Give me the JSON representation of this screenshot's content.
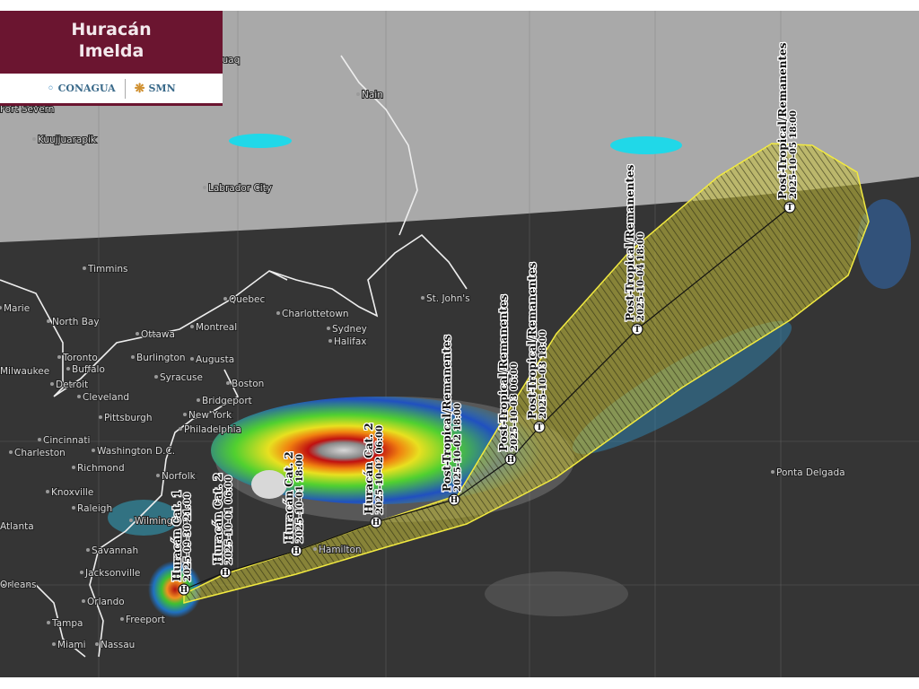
{
  "banner": {
    "title_line1": "Huracán",
    "title_line2": "Imelda",
    "logo_left": "CONAGUA",
    "logo_right": "SMN"
  },
  "colors": {
    "banner": "#6b1530",
    "cone": "#e8e04a",
    "upper_background": "#a8a8a8",
    "satellite_background": "#343434"
  },
  "track": [
    {
      "title": "Huracán Cat. 1",
      "date": "2025-09-30 21:00",
      "marker": "H"
    },
    {
      "title": "Huracán Cat. 2",
      "date": "2025-10-01 06:00",
      "marker": "H"
    },
    {
      "title": "Huracán Cat. 2",
      "date": "2025-10-01 18:00",
      "marker": "H"
    },
    {
      "title": "Huracán Cat. 2",
      "date": "2025-10-02 06:00",
      "marker": "H"
    },
    {
      "title": "Post-Tropical/Remanentes",
      "date": "2025-10-02 18:00",
      "marker": "H"
    },
    {
      "title": "Post-Tropical/Remanentes",
      "date": "2025-10-03 06:00",
      "marker": "H"
    },
    {
      "title": "Post-Tropical/Remanentes",
      "date": "2025-10-03 18:00",
      "marker": "T"
    },
    {
      "title": "Post-Tropical/Remanentes",
      "date": "2025-10-04 18:00",
      "marker": "T"
    },
    {
      "title": "Post-Tropical/Remanentes",
      "date": "2025-10-05 18:00",
      "marker": "T"
    }
  ],
  "cities": [
    "Kuujjuaq",
    "Nain",
    "Fort Severn",
    "Kuujjuarapik",
    "Labrador City",
    "Timmins",
    "Marie",
    "North Bay",
    "Quebec",
    "Charlottetown",
    "Sydney",
    "Halifax",
    "St. John's",
    "Ottawa",
    "Montreal",
    "Toronto",
    "Buffalo",
    "Burlington",
    "Augusta",
    "Milwaukee",
    "Detroit",
    "Syracuse",
    "Boston",
    "Cleveland",
    "Bridgeport",
    "Pittsburgh",
    "New York",
    "Philadelphia",
    "Cincinnati",
    "Charleston",
    "Washington D.C.",
    "Richmond",
    "Norfolk",
    "Knoxville",
    "Raleigh",
    "Atlanta",
    "Wilmington",
    "Savannah",
    "Jacksonville",
    "Orleans",
    "Orlando",
    "Tampa",
    "Miami",
    "Freeport",
    "Nassau",
    "Hamilton",
    "Ponta Delgada"
  ]
}
